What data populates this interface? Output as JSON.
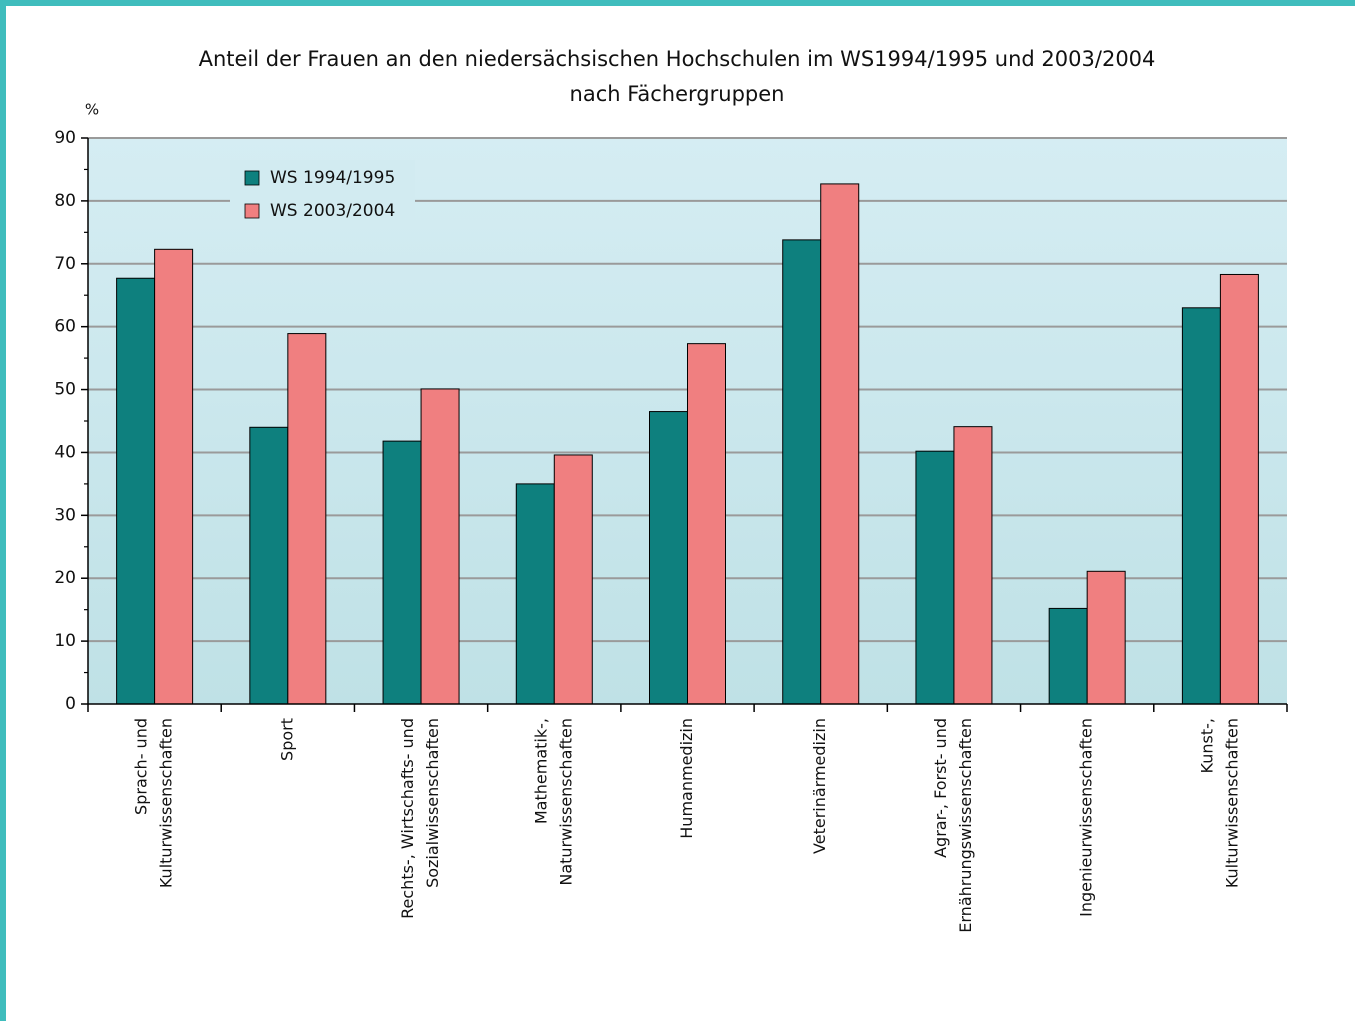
{
  "chart_data": {
    "type": "bar",
    "title": [
      "Anteil der Frauen an den niedersächsischen Hochschulen im WS1994/1995 und 2003/2004",
      "nach Fächergruppen"
    ],
    "y_label": "%",
    "categories": [
      [
        "Sprach- und",
        "Kulturwissenschaften"
      ],
      [
        "Sport"
      ],
      [
        "Rechts-, Wirtschafts- und",
        "Sozialwissenschaften"
      ],
      [
        "Mathematik-,",
        "Naturwissenschaften"
      ],
      [
        "Humanmedizin"
      ],
      [
        "Veterinärmedizin"
      ],
      [
        "Agrar-, Forst- und",
        "Ernährungswissenschaften"
      ],
      [
        "Ingenieurwissenschaften"
      ],
      [
        "Kunst-,",
        "Kulturwissenschaften"
      ]
    ],
    "series": [
      {
        "name": "WS 1994/1995",
        "color": "#0e807e",
        "values": [
          67.7,
          44,
          41.8,
          35,
          46.5,
          73.8,
          40.2,
          15.2,
          63
        ]
      },
      {
        "name": "WS 2003/2004",
        "color": "#f07f80",
        "values": [
          72.3,
          58.9,
          50.1,
          39.6,
          57.3,
          82.7,
          44.1,
          21.1,
          68.3
        ]
      }
    ],
    "ylim": [
      0,
      90
    ],
    "yticks": [
      0,
      10,
      20,
      30,
      40,
      50,
      60,
      70,
      80,
      90
    ],
    "grid": true,
    "legend": "upper left"
  }
}
